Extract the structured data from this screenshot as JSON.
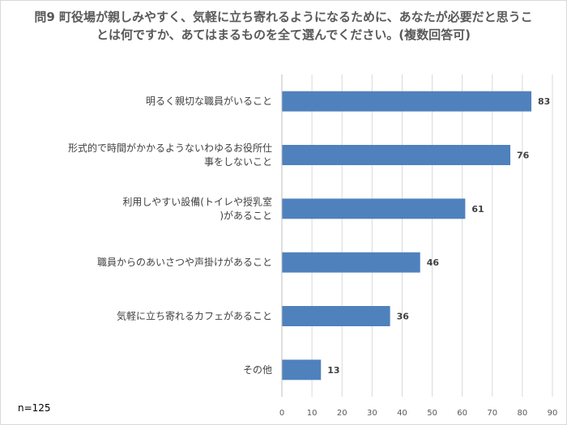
{
  "chart_data": {
    "type": "bar",
    "orientation": "horizontal",
    "title": "問9 町役場が親しみやすく、気軽に立ち寄れるようになるために、あなたが必要だと思うことは何ですか、あてはまるものを全て選んでください。(複数回答可)",
    "categories": [
      "明るく親切な職員がいること",
      "形式的で時間がかかるようないわゆるお役所仕事をしないこと",
      "利用しやすい設備(トイレや授乳室)があること",
      "職員からのあいさつや声掛けがあること",
      "気軽に立ち寄れるカフェがあること",
      "その他"
    ],
    "values": [
      83,
      76,
      61,
      46,
      36,
      13
    ],
    "xlim": [
      0,
      90
    ],
    "xticks": [
      0,
      10,
      20,
      30,
      40,
      50,
      60,
      70,
      80,
      90
    ],
    "grid": true,
    "bar_color": "#4f81bd",
    "note": "n=125"
  }
}
